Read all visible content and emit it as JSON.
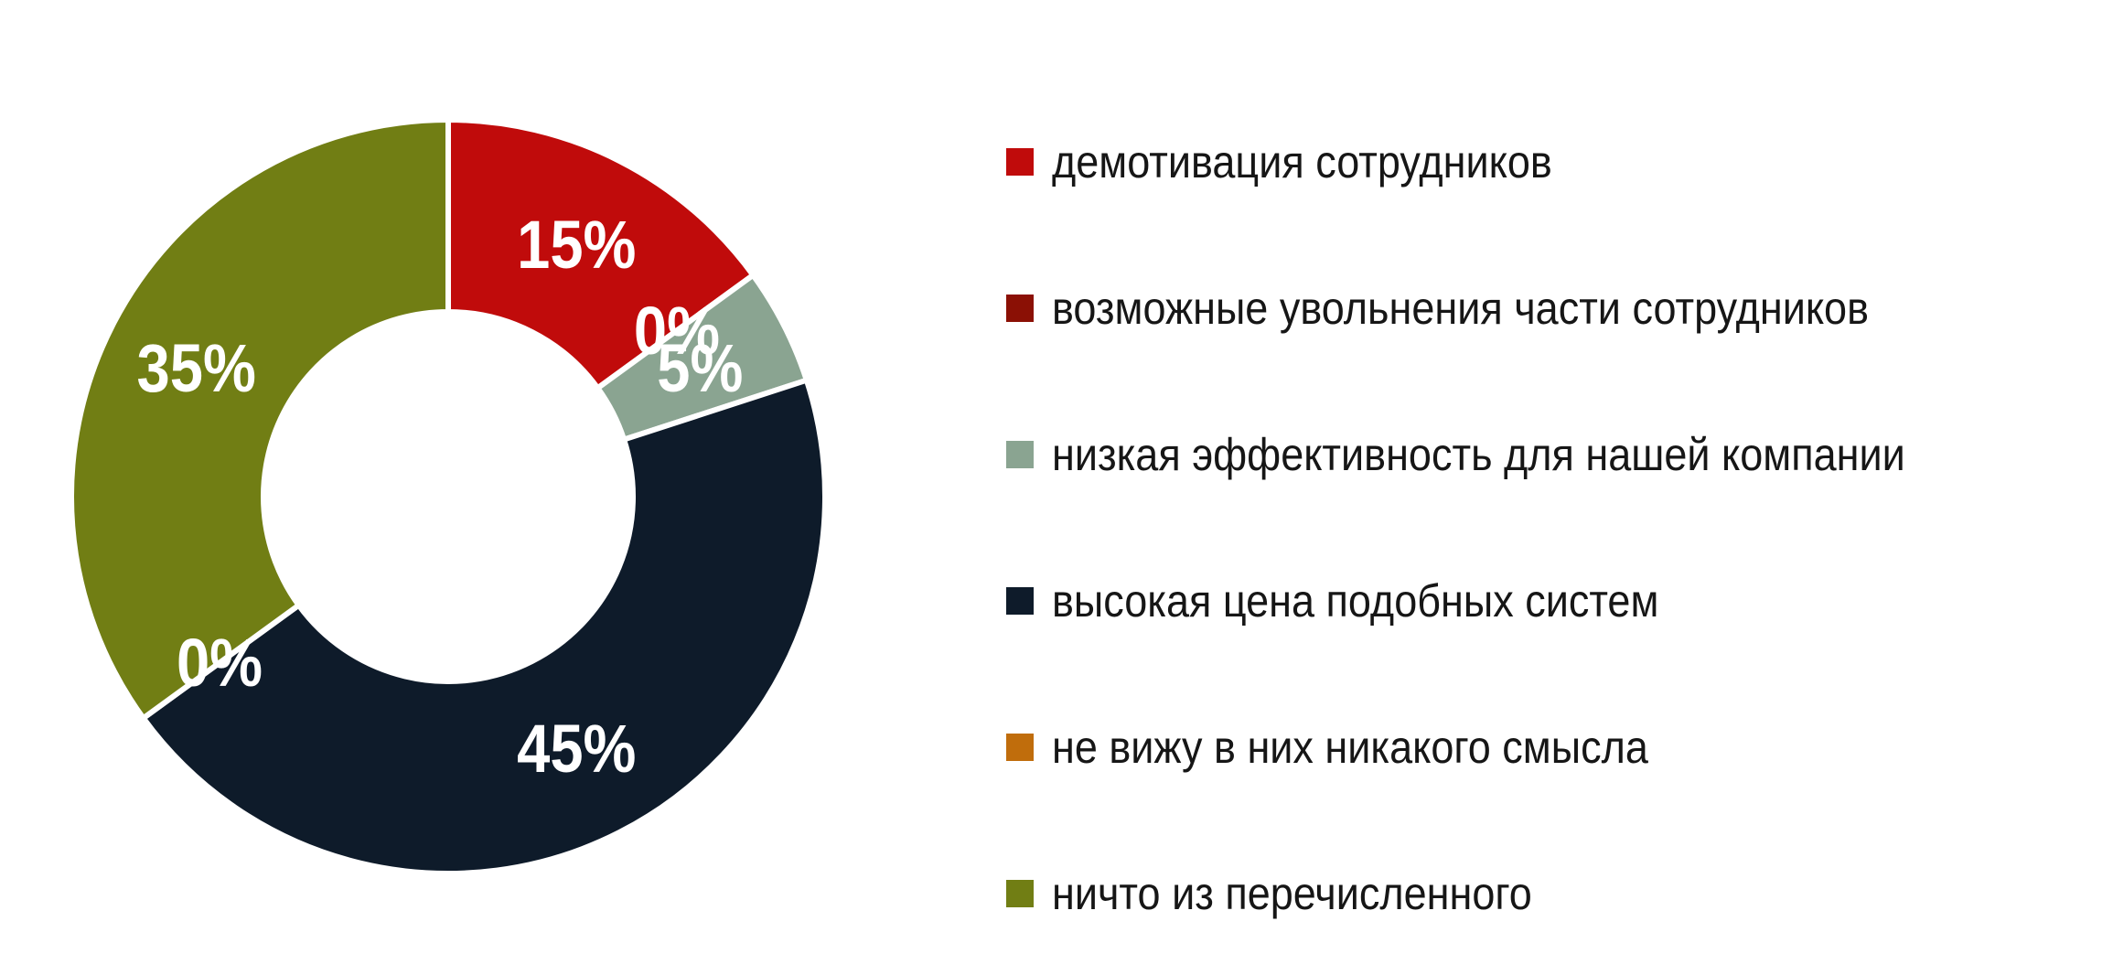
{
  "page": {
    "background": "#ffffff"
  },
  "chart_data": {
    "type": "pie",
    "subtype": "donut",
    "title": "",
    "direction": "clockwise",
    "start_angle_deg": 0,
    "donut_hole_ratio": 0.49,
    "grid": false,
    "legend_position": "right",
    "data_label_color": "#ffffff",
    "separator_color": "#ffffff",
    "categories": [
      "демотивация сотрудников",
      "возможные увольнения части сотрудников",
      "низкая эффективность для нашей компании",
      "высокая цена подобных систем",
      "не вижу в них никакого смысла",
      "ничто из перечисленного"
    ],
    "values": [
      15,
      0,
      5,
      45,
      0,
      35
    ],
    "slices": [
      {
        "label": "демотивация сотрудников",
        "value": 15,
        "data_label": "15%",
        "color": "#c00b0b"
      },
      {
        "label": "возможные увольнения части сотрудников",
        "value": 0,
        "data_label": "0%",
        "color": "#8b1005"
      },
      {
        "label": "низкая эффективность для нашей компании",
        "value": 5,
        "data_label": "5%",
        "color": "#8aa491"
      },
      {
        "label": "высокая цена подобных систем",
        "value": 45,
        "data_label": "45%",
        "color": "#0e1b2a"
      },
      {
        "label": "не вижу в них никакого смысла",
        "value": 0,
        "data_label": "0%",
        "color": "#c06d0c"
      },
      {
        "label": "ничто из перечисленного",
        "value": 35,
        "data_label": "35%",
        "color": "#717e14"
      }
    ]
  }
}
